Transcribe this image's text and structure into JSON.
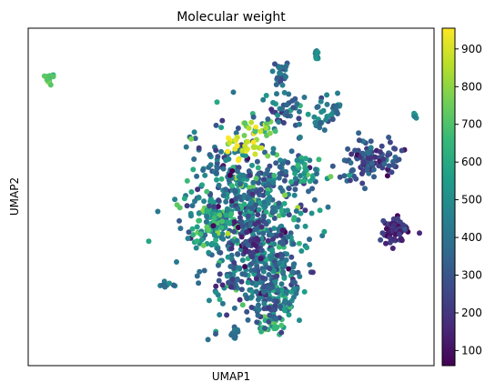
{
  "chart_data": {
    "type": "scatter",
    "title": "Molecular weight",
    "xlabel": "UMAP1",
    "ylabel": "UMAP2",
    "xticks": [],
    "yticks": [],
    "colormap": "viridis",
    "colorbar": {
      "min": 60,
      "max": 955,
      "ticks": [
        100,
        200,
        300,
        400,
        500,
        600,
        700,
        800,
        900
      ]
    },
    "clusters": [
      {
        "cx": 0.05,
        "cy": 0.15,
        "rx": 0.012,
        "ry": 0.015,
        "n": 12,
        "v": 700,
        "vs": 30
      },
      {
        "cx": 0.55,
        "cy": 0.58,
        "rx": 0.12,
        "ry": 0.2,
        "n": 480,
        "v": 420,
        "vs": 140
      },
      {
        "cx": 0.58,
        "cy": 0.72,
        "rx": 0.07,
        "ry": 0.09,
        "n": 90,
        "v": 360,
        "vs": 120
      },
      {
        "cx": 0.5,
        "cy": 0.48,
        "rx": 0.1,
        "ry": 0.12,
        "n": 160,
        "v": 450,
        "vs": 150
      },
      {
        "cx": 0.63,
        "cy": 0.8,
        "rx": 0.04,
        "ry": 0.04,
        "n": 45,
        "v": 500,
        "vs": 110
      },
      {
        "cx": 0.9,
        "cy": 0.6,
        "rx": 0.03,
        "ry": 0.035,
        "n": 70,
        "v": 180,
        "vs": 50
      },
      {
        "cx": 0.82,
        "cy": 0.4,
        "rx": 0.05,
        "ry": 0.05,
        "n": 70,
        "v": 280,
        "vs": 90
      },
      {
        "cx": 0.87,
        "cy": 0.38,
        "rx": 0.04,
        "ry": 0.04,
        "n": 45,
        "v": 280,
        "vs": 100
      },
      {
        "cx": 0.45,
        "cy": 0.6,
        "rx": 0.05,
        "ry": 0.05,
        "n": 60,
        "v": 560,
        "vs": 120
      },
      {
        "cx": 0.6,
        "cy": 0.48,
        "rx": 0.06,
        "ry": 0.06,
        "n": 40,
        "v": 380,
        "vs": 160
      },
      {
        "cx": 0.6,
        "cy": 0.88,
        "rx": 0.03,
        "ry": 0.025,
        "n": 25,
        "v": 650,
        "vs": 80
      },
      {
        "cx": 0.58,
        "cy": 0.8,
        "rx": 0.05,
        "ry": 0.07,
        "n": 60,
        "v": 330,
        "vs": 80
      },
      {
        "cx": 0.55,
        "cy": 0.62,
        "rx": 0.05,
        "ry": 0.06,
        "n": 50,
        "v": 240,
        "vs": 80
      },
      {
        "cx": 0.67,
        "cy": 0.42,
        "rx": 0.04,
        "ry": 0.04,
        "n": 30,
        "v": 500,
        "vs": 120
      },
      {
        "cx": 0.53,
        "cy": 0.35,
        "rx": 0.04,
        "ry": 0.04,
        "n": 30,
        "v": 900,
        "vs": 60
      },
      {
        "cx": 0.58,
        "cy": 0.3,
        "rx": 0.03,
        "ry": 0.025,
        "n": 18,
        "v": 840,
        "vs": 80
      },
      {
        "cx": 0.64,
        "cy": 0.24,
        "rx": 0.05,
        "ry": 0.05,
        "n": 40,
        "v": 360,
        "vs": 110
      },
      {
        "cx": 0.74,
        "cy": 0.24,
        "rx": 0.04,
        "ry": 0.04,
        "n": 30,
        "v": 380,
        "vs": 100
      },
      {
        "cx": 0.62,
        "cy": 0.14,
        "rx": 0.02,
        "ry": 0.04,
        "n": 25,
        "v": 380,
        "vs": 70
      },
      {
        "cx": 0.71,
        "cy": 0.08,
        "rx": 0.005,
        "ry": 0.012,
        "n": 15,
        "v": 450,
        "vs": 50
      },
      {
        "cx": 0.95,
        "cy": 0.26,
        "rx": 0.008,
        "ry": 0.006,
        "n": 5,
        "v": 520,
        "vs": 30
      },
      {
        "cx": 0.51,
        "cy": 0.91,
        "rx": 0.01,
        "ry": 0.015,
        "n": 14,
        "v": 380,
        "vs": 40
      },
      {
        "cx": 0.5,
        "cy": 0.75,
        "rx": 0.02,
        "ry": 0.025,
        "n": 15,
        "v": 380,
        "vs": 100
      },
      {
        "cx": 0.34,
        "cy": 0.76,
        "rx": 0.012,
        "ry": 0.01,
        "n": 8,
        "v": 380,
        "vs": 50
      },
      {
        "cx": 0.72,
        "cy": 0.28,
        "rx": 0.01,
        "ry": 0.015,
        "n": 8,
        "v": 400,
        "vs": 60
      }
    ]
  }
}
